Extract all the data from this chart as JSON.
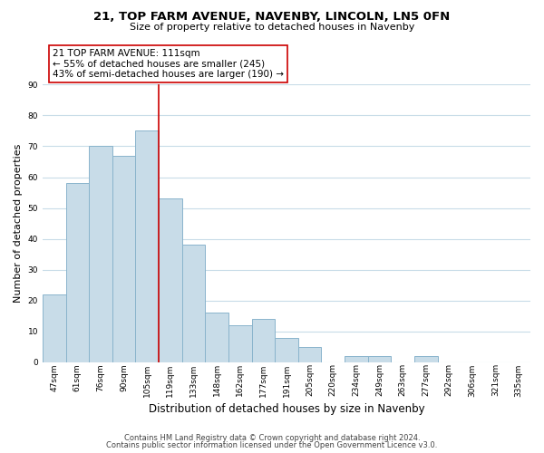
{
  "title": "21, TOP FARM AVENUE, NAVENBY, LINCOLN, LN5 0FN",
  "subtitle": "Size of property relative to detached houses in Navenby",
  "xlabel": "Distribution of detached houses by size in Navenby",
  "ylabel": "Number of detached properties",
  "categories": [
    "47sqm",
    "61sqm",
    "76sqm",
    "90sqm",
    "105sqm",
    "119sqm",
    "133sqm",
    "148sqm",
    "162sqm",
    "177sqm",
    "191sqm",
    "205sqm",
    "220sqm",
    "234sqm",
    "249sqm",
    "263sqm",
    "277sqm",
    "292sqm",
    "306sqm",
    "321sqm",
    "335sqm"
  ],
  "values": [
    22,
    58,
    70,
    67,
    75,
    53,
    38,
    16,
    12,
    14,
    8,
    5,
    0,
    2,
    2,
    0,
    2,
    0,
    0,
    0,
    0
  ],
  "bar_color": "#c8dce8",
  "bar_edge_color": "#8ab4cc",
  "vline_color": "#cc0000",
  "vline_x": 4.5,
  "annotation_title": "21 TOP FARM AVENUE: 111sqm",
  "annotation_line1": "← 55% of detached houses are smaller (245)",
  "annotation_line2": "43% of semi-detached houses are larger (190) →",
  "annotation_box_color": "#ffffff",
  "annotation_box_edge": "#cc0000",
  "ylim": [
    0,
    90
  ],
  "yticks": [
    0,
    10,
    20,
    30,
    40,
    50,
    60,
    70,
    80,
    90
  ],
  "footnote1": "Contains HM Land Registry data © Crown copyright and database right 2024.",
  "footnote2": "Contains public sector information licensed under the Open Government Licence v3.0.",
  "bg_color": "#ffffff",
  "grid_color": "#c8dce8",
  "title_fontsize": 9.5,
  "subtitle_fontsize": 8,
  "ylabel_fontsize": 8,
  "xlabel_fontsize": 8.5,
  "tick_fontsize": 6.5,
  "annotation_fontsize": 7.5,
  "footnote_fontsize": 6
}
